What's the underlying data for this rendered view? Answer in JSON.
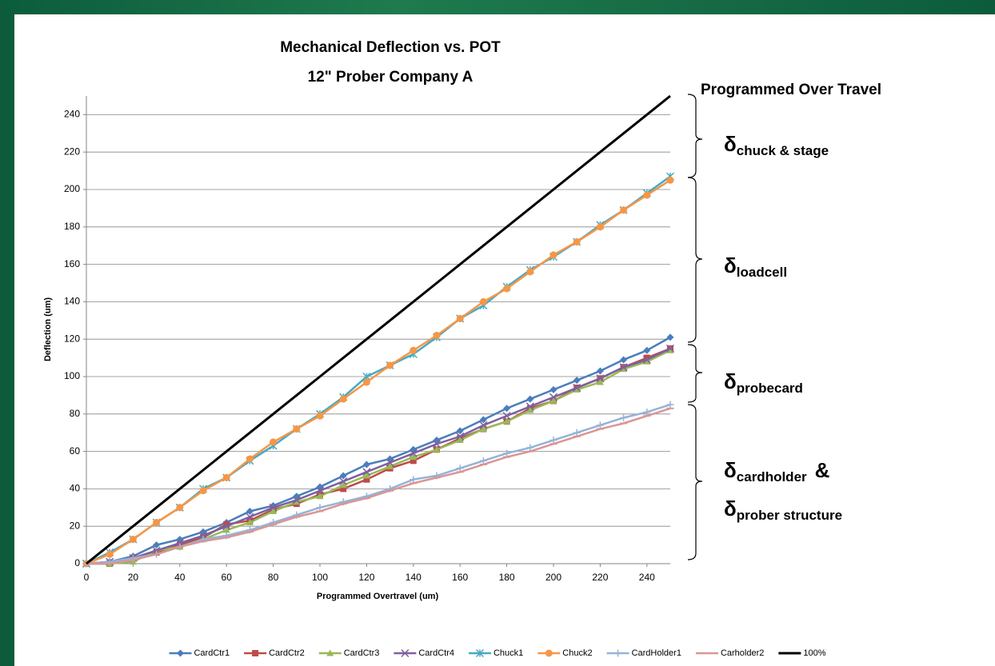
{
  "chart_data": {
    "type": "line",
    "title": [
      "Mechanical Deflection vs. POT",
      "12\" Prober Company A"
    ],
    "x_label": "Programmed Overtravel (um)",
    "y_label": "Deflection (um)",
    "x": [
      0,
      10,
      20,
      30,
      40,
      50,
      60,
      70,
      80,
      90,
      100,
      110,
      120,
      130,
      140,
      150,
      160,
      170,
      180,
      190,
      200,
      210,
      220,
      230,
      240,
      250
    ],
    "xlim": [
      0,
      250
    ],
    "ylim": [
      0,
      250
    ],
    "xticks": [
      0,
      20,
      40,
      60,
      80,
      100,
      120,
      140,
      160,
      180,
      200,
      220,
      240
    ],
    "yticks": [
      0,
      20,
      40,
      60,
      80,
      100,
      120,
      140,
      160,
      180,
      200,
      220,
      240
    ],
    "grid": true,
    "legend": "bottom",
    "series": [
      {
        "name": "CardCtr1",
        "color": "#4a7ebb",
        "marker": "diamond",
        "values": [
          0,
          1,
          4,
          10,
          13,
          17,
          22,
          28,
          31,
          36,
          41,
          47,
          53,
          56,
          61,
          66,
          71,
          77,
          83,
          88,
          93,
          98,
          103,
          109,
          114,
          121
        ]
      },
      {
        "name": "CardCtr2",
        "color": "#be4b48",
        "marker": "square",
        "values": [
          0,
          0,
          3,
          6,
          10,
          14,
          21,
          23,
          29,
          32,
          37,
          40,
          45,
          51,
          55,
          61,
          67,
          72,
          76,
          83,
          87,
          94,
          99,
          105,
          110,
          115
        ]
      },
      {
        "name": "CardCtr3",
        "color": "#98b954",
        "marker": "triangle",
        "values": [
          0,
          0,
          1,
          7,
          9,
          13,
          18,
          22,
          28,
          33,
          36,
          42,
          47,
          52,
          57,
          61,
          66,
          72,
          76,
          82,
          87,
          93,
          97,
          104,
          108,
          114
        ]
      },
      {
        "name": "CardCtr4",
        "color": "#7d60a0",
        "marker": "x",
        "values": [
          0,
          1,
          3,
          7,
          11,
          15,
          20,
          25,
          30,
          34,
          39,
          44,
          49,
          54,
          59,
          64,
          68,
          74,
          79,
          84,
          89,
          94,
          99,
          105,
          109,
          115
        ]
      },
      {
        "name": "Chuck1",
        "color": "#46aac5",
        "marker": "star",
        "values": [
          0,
          6,
          13,
          22,
          30,
          40,
          46,
          55,
          63,
          72,
          80,
          89,
          100,
          106,
          112,
          121,
          131,
          138,
          148,
          157,
          164,
          172,
          181,
          189,
          198,
          207
        ]
      },
      {
        "name": "Chuck2",
        "color": "#f79646",
        "marker": "circle",
        "values": [
          0,
          5,
          13,
          22,
          30,
          39,
          46,
          56,
          65,
          72,
          79,
          88,
          97,
          106,
          114,
          122,
          131,
          140,
          147,
          156,
          165,
          172,
          180,
          189,
          197,
          205
        ]
      },
      {
        "name": "CardHolder1",
        "color": "#95b3d7",
        "marker": "plus",
        "values": [
          0,
          1,
          3,
          5,
          9,
          13,
          15,
          18,
          22,
          26,
          30,
          33,
          36,
          40,
          45,
          47,
          51,
          55,
          59,
          62,
          66,
          70,
          74,
          78,
          81,
          85
        ]
      },
      {
        "name": "Carholder2",
        "color": "#d99694",
        "marker": "dash",
        "values": [
          0,
          0,
          2,
          5,
          9,
          12,
          14,
          17,
          21,
          25,
          28,
          32,
          35,
          39,
          43,
          46,
          49,
          53,
          57,
          60,
          64,
          68,
          72,
          75,
          79,
          83
        ]
      },
      {
        "name": "100%",
        "color": "#000000",
        "marker": "none",
        "values": [
          0,
          10,
          20,
          30,
          40,
          50,
          60,
          70,
          80,
          90,
          100,
          110,
          120,
          130,
          140,
          150,
          160,
          170,
          180,
          190,
          200,
          210,
          220,
          230,
          240,
          250
        ]
      }
    ],
    "annotations": [
      {
        "text": "Programmed Over Travel"
      },
      {
        "symbol": "δ",
        "sub": "chuck & stage"
      },
      {
        "symbol": "δ",
        "sub": "loadcell"
      },
      {
        "symbol": "δ",
        "sub": "probecard"
      },
      {
        "symbol": "δ",
        "sub": "cardholder",
        "after": "&"
      },
      {
        "symbol": "δ",
        "sub": "prober structure"
      }
    ]
  }
}
